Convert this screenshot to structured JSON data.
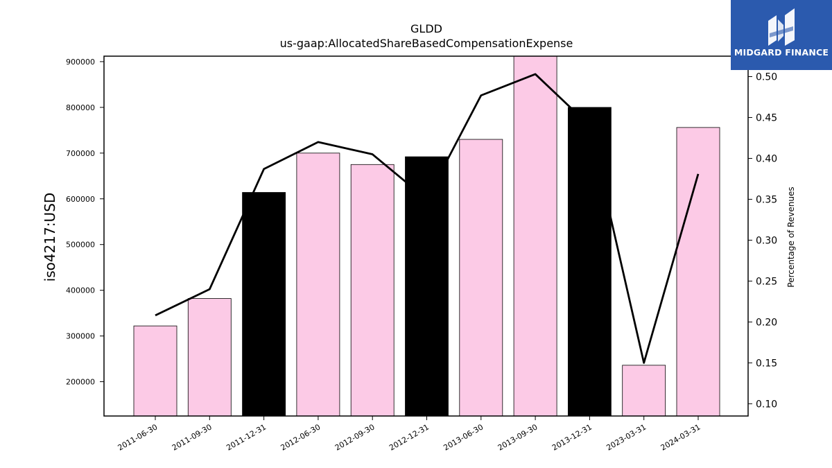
{
  "chart_data": {
    "type": "bar",
    "title": "GLDD",
    "subtitle": "us-gaap:AllocatedShareBasedCompensationExpense",
    "ylabel": "iso4217:USD",
    "y2label": "Percentage of Revenues",
    "categories": [
      "2011-06-30",
      "2011-09-30",
      "2011-12-31",
      "2012-06-30",
      "2012-09-30",
      "2012-12-31",
      "2013-06-30",
      "2013-09-30",
      "2013-12-31",
      "2023-03-31",
      "2024-03-31"
    ],
    "values": [
      322000,
      382000,
      614000,
      700000,
      675000,
      692000,
      730000,
      915000,
      800000,
      236000,
      756000
    ],
    "bar_colors": [
      "#fccae6",
      "#fccae6",
      "#000000",
      "#fccae6",
      "#fccae6",
      "#000000",
      "#fccae6",
      "#fccae6",
      "#000000",
      "#fccae6",
      "#fccae6"
    ],
    "line_series": {
      "values": [
        0.208,
        0.24,
        0.387,
        0.42,
        0.405,
        0.35,
        0.477,
        0.503,
        0.44,
        0.15,
        0.381
      ],
      "color": "#000000"
    },
    "ylim": [
      125000,
      912000
    ],
    "y2lim": [
      0.085,
      0.525
    ],
    "yticks": [
      "200000",
      "300000",
      "400000",
      "500000",
      "600000",
      "700000",
      "800000",
      "900000"
    ],
    "y2ticks": [
      "0.10",
      "0.15",
      "0.20",
      "0.25",
      "0.30",
      "0.35",
      "0.40",
      "0.45",
      "0.50"
    ],
    "grid": false
  },
  "logo": {
    "text": "MIDGARD FINANCE",
    "icon": "midgard-logo-icon",
    "background": "#2b5aae"
  }
}
